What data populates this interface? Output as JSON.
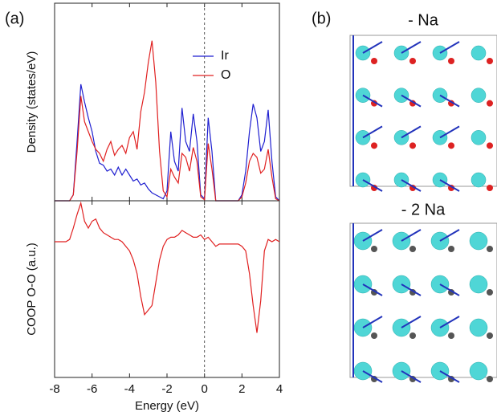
{
  "panel_labels": [
    "(a)",
    "(b)"
  ],
  "structures": [
    {
      "title": "- Na"
    },
    {
      "title": "- 2 Na"
    }
  ],
  "chart_data": [
    {
      "type": "line",
      "ylabel": "Density (states/eV)",
      "xlim": [
        -8,
        4
      ],
      "ylim": [
        0,
        10
      ],
      "vline": 0,
      "legend": "upper right",
      "x": [
        -8,
        -7.8,
        -7.6,
        -7.4,
        -7.2,
        -7,
        -6.8,
        -6.6,
        -6.4,
        -6.2,
        -6,
        -5.8,
        -5.6,
        -5.4,
        -5.2,
        -5,
        -4.8,
        -4.6,
        -4.4,
        -4.2,
        -4,
        -3.8,
        -3.6,
        -3.4,
        -3.2,
        -3,
        -2.8,
        -2.6,
        -2.4,
        -2.2,
        -2,
        -1.8,
        -1.6,
        -1.4,
        -1.2,
        -1,
        -0.8,
        -0.6,
        -0.4,
        -0.2,
        0,
        0.2,
        0.4,
        0.6,
        0.8,
        1,
        1.2,
        1.4,
        1.6,
        1.8,
        2,
        2.2,
        2.4,
        2.6,
        2.8,
        3,
        3.2,
        3.4,
        3.6,
        3.8,
        4
      ],
      "series": [
        {
          "name": "Ir",
          "color": "#1f1fd0",
          "values": [
            0,
            0,
            0,
            0,
            0,
            0.3,
            3,
            5.9,
            5,
            4.2,
            3.5,
            2.5,
            1.9,
            1.8,
            1.5,
            1.6,
            1.3,
            1.7,
            1.3,
            1.6,
            1.3,
            1,
            1.1,
            0.8,
            0.9,
            0.6,
            0.4,
            0.3,
            0.2,
            0.1,
            0.5,
            3.5,
            2,
            1.5,
            4.7,
            3,
            2.5,
            4.4,
            3,
            0.3,
            0.1,
            4.2,
            2.5,
            0,
            0,
            0,
            0,
            0,
            0,
            0,
            0.3,
            1.5,
            3.5,
            4.9,
            4.2,
            2.5,
            3,
            4.6,
            2,
            0.2,
            0
          ]
        },
        {
          "name": "O",
          "color": "#e02020",
          "values": [
            0,
            0,
            0,
            0,
            0,
            0.3,
            2.5,
            5.3,
            4,
            3.5,
            3,
            2.6,
            2.4,
            2,
            2.6,
            3,
            2.3,
            2.6,
            2.8,
            2.4,
            3.2,
            3.5,
            2.6,
            4.5,
            5.5,
            7,
            8.1,
            6,
            2.5,
            0.5,
            0.2,
            1.6,
            1.2,
            0.9,
            2.4,
            2.2,
            1.5,
            2.7,
            2,
            0.2,
            0.05,
            2.9,
            1.6,
            0,
            0,
            0,
            0,
            0,
            0,
            0,
            0.2,
            0.9,
            2,
            2.4,
            2.2,
            1.4,
            1.6,
            2.6,
            1.2,
            0.1,
            0
          ]
        }
      ]
    },
    {
      "type": "line",
      "ylabel": "COOP O-O (a.u.)",
      "xlabel": "Energy (eV)",
      "xlim": [
        -8,
        4
      ],
      "xticks": [
        -8,
        -6,
        -4,
        -2,
        0,
        2,
        4
      ],
      "ylim": [
        -2.98,
        0.9
      ],
      "vline": 0,
      "x": [
        -8,
        -7.8,
        -7.6,
        -7.4,
        -7.2,
        -7,
        -6.8,
        -6.6,
        -6.4,
        -6.2,
        -6,
        -5.8,
        -5.6,
        -5.4,
        -5.2,
        -5,
        -4.8,
        -4.6,
        -4.4,
        -4.2,
        -4,
        -3.8,
        -3.6,
        -3.4,
        -3.2,
        -3,
        -2.8,
        -2.6,
        -2.4,
        -2.2,
        -2,
        -1.8,
        -1.6,
        -1.4,
        -1.2,
        -1,
        -0.8,
        -0.6,
        -0.4,
        -0.2,
        0,
        0.2,
        0.4,
        0.6,
        0.8,
        1,
        1.2,
        1.4,
        1.6,
        1.8,
        2,
        2.2,
        2.4,
        2.6,
        2.8,
        3,
        3.2,
        3.4,
        3.6,
        3.8,
        4
      ],
      "series": [
        {
          "color": "#e02020",
          "values": [
            0,
            0,
            0,
            0,
            0.05,
            0.3,
            0.6,
            0.85,
            0.45,
            0.3,
            0.45,
            0.5,
            0.3,
            0.2,
            0.15,
            0.1,
            0.05,
            0.05,
            0,
            -0.1,
            -0.2,
            -0.4,
            -0.7,
            -1.2,
            -1.6,
            -1.5,
            -1.4,
            -0.9,
            -0.4,
            -0.1,
            0.05,
            0.1,
            0.1,
            0.15,
            0.25,
            0.2,
            0.15,
            0.1,
            0.1,
            0.15,
            0.05,
            0.1,
            0,
            -0.1,
            -0.05,
            -0.05,
            -0.05,
            -0.05,
            -0.05,
            -0.05,
            -0.1,
            -0.2,
            -0.7,
            -1.4,
            -2,
            -1.3,
            -0.2,
            0.05,
            0,
            0.05,
            0
          ]
        }
      ]
    }
  ]
}
